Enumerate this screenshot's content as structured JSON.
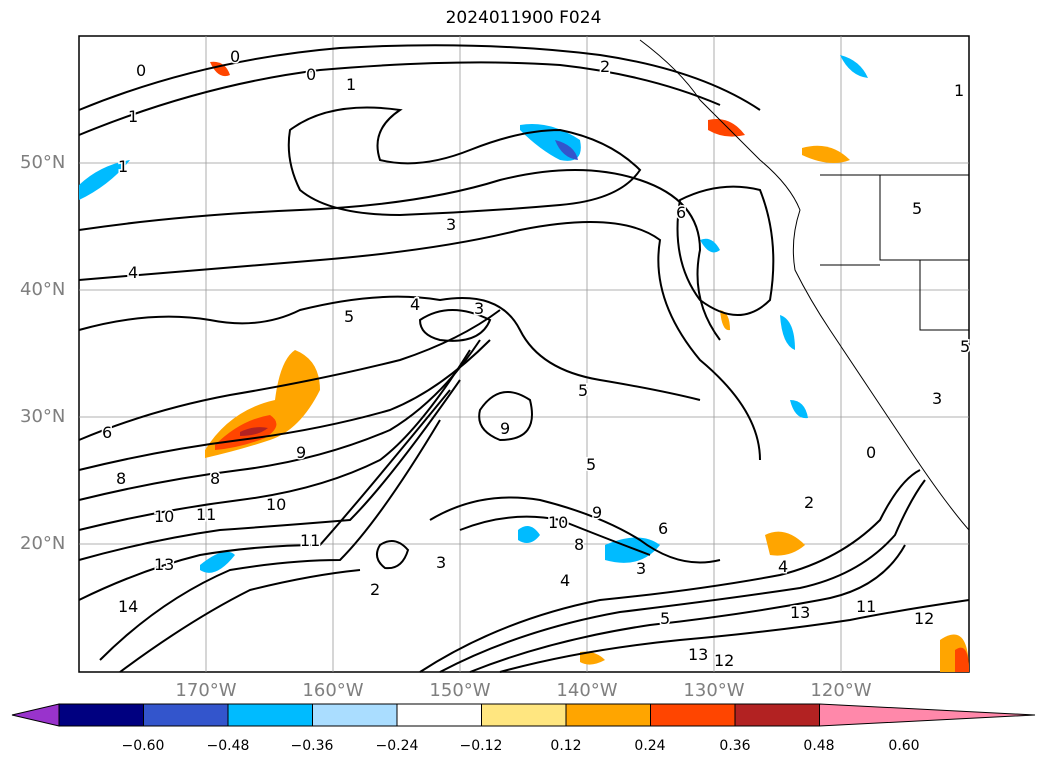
{
  "title": "2024011900 F024",
  "map": {
    "lat_labels": [
      "50°N",
      "40°N",
      "30°N",
      "20°N"
    ],
    "lon_labels": [
      "170°W",
      "160°W",
      "150°W",
      "140°W",
      "130°W",
      "120°W"
    ],
    "contour_labels": [
      "0",
      "0",
      "0",
      "1",
      "1",
      "1",
      "2",
      "3",
      "3",
      "4",
      "4",
      "5",
      "5",
      "5",
      "6",
      "6",
      "8",
      "8",
      "9",
      "9",
      "10",
      "10",
      "11",
      "11",
      "13",
      "14",
      "3",
      "5",
      "9",
      "10",
      "8",
      "6",
      "3",
      "4",
      "2",
      "13",
      "11",
      "12",
      "13",
      "12",
      "2",
      "4",
      "5",
      "3",
      "0",
      "1",
      "5"
    ]
  },
  "colorbar": {
    "ticks": [
      "−0.60",
      "−0.48",
      "−0.36",
      "−0.24",
      "−0.12",
      "0.12",
      "0.24",
      "0.36",
      "0.48",
      "0.60"
    ],
    "colors": [
      "#9933cc",
      "#000080",
      "#3355cc",
      "#00bbff",
      "#aaddff",
      "#ffffff",
      "#ffe680",
      "#ffa500",
      "#ff4500",
      "#b22222",
      "#ff88aa"
    ]
  }
}
